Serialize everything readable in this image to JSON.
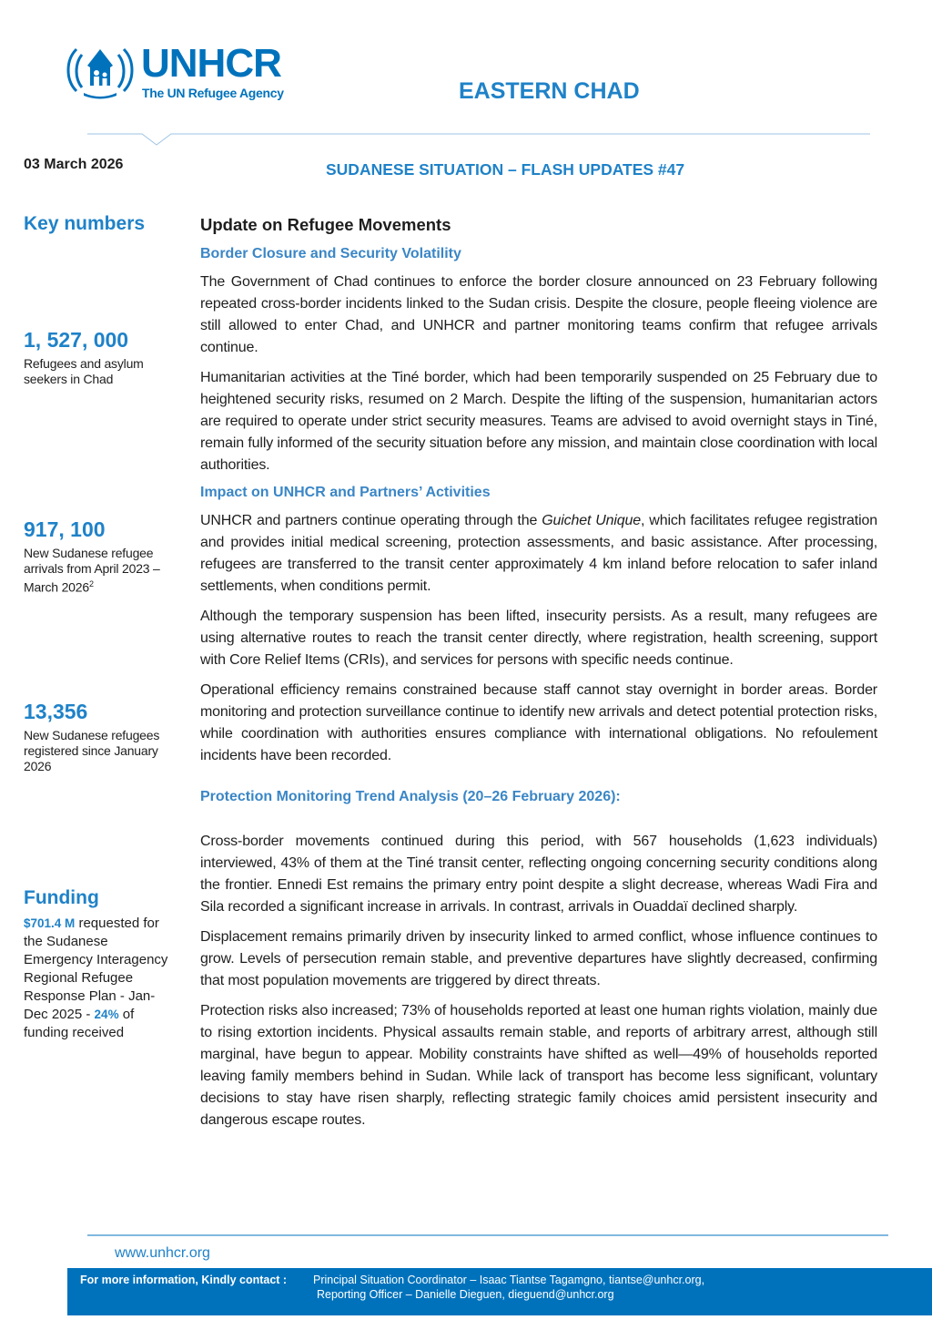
{
  "header": {
    "logo_name": "UNHCR",
    "logo_tagline": "The UN Refugee Agency",
    "region": "EASTERN CHAD",
    "date": "03 March 2026",
    "report_title": "SUDANESE SITUATION – FLASH UPDATES #47"
  },
  "sidebar": {
    "key_numbers_title": "Key numbers",
    "key_numbers": [
      {
        "value": "1, 527, 000",
        "label": "Refugees and asylum seekers in Chad"
      },
      {
        "value": "917, 100",
        "label": "New Sudanese refugee arrivals from April 2023 – March 2026",
        "footnote": "2"
      },
      {
        "value": "13,356",
        "label": "New Sudanese refugees registered since January 2026"
      }
    ],
    "funding_title": "Funding",
    "funding_text": [
      "",
      "$701.4 M",
      " requested for the Sudanese Emergency Interagency Regional Refugee Response Plan - Jan- Dec 2025 - ",
      "24%",
      " of funding received"
    ]
  },
  "main": {
    "title": "Update on Refugee Movements",
    "sections": [
      {
        "heading": "Border Closure and Security Volatility",
        "paragraphs": [
          [
            "The Government of Chad continues to enforce the border closure announced on 23 February following repeated cross-border incidents linked to the Sudan crisis. Despite the closure, people fleeing violence are still allowed to enter Chad, and UNHCR and partner monitoring teams confirm that refugee arrivals continue."
          ],
          [
            "Humanitarian activities at the Tiné border, which had been temporarily suspended on 25 February due to heightened security risks, resumed on 2 March. Despite the lifting of the suspension, humanitarian actors are required to operate under strict security measures. Teams are advised to avoid overnight stays in Tiné, remain fully informed of the security situation before any mission, and maintain close coordination with local authorities."
          ]
        ]
      },
      {
        "heading": "Impact on UNHCR and Partners’ Activities",
        "paragraphs": [
          [
            "UNHCR and partners continue operating through the ",
            "Guichet Unique",
            ", which facilitates refugee registration and provides initial medical screening, protection assessments, and basic assistance. After processing, refugees are transferred to the transit center approximately 4 km inland before relocation to safer inland settlements, when conditions permit."
          ],
          [
            "Although the temporary suspension has been lifted, insecurity persists. As a result, many refugees are using alternative routes to reach the transit center directly, where registration, health screening, support with Core Relief Items (CRIs), and services for persons with specific needs continue."
          ],
          [
            "Operational efficiency remains constrained because staff cannot stay overnight in border areas. Border monitoring and protection surveillance continue to identify new arrivals and detect potential protection risks, while coordination with authorities ensures compliance with international obligations. No refoulement incidents have been recorded."
          ]
        ]
      },
      {
        "heading": "Protection Monitoring Trend Analysis (20–26 February 2026):",
        "paragraphs": [
          [
            "Cross-border movements continued during this period, with 567 households (1,623 individuals) interviewed, 43% of them at the Tiné transit center, reflecting ongoing concerning security conditions along the frontier. Ennedi Est remains the primary entry point despite a slight decrease, whereas Wadi Fira and Sila recorded a significant increase in arrivals. In contrast, arrivals in Ouaddaï declined sharply."
          ],
          [
            "Displacement remains primarily driven by insecurity linked to armed conflict, whose influence continues to grow. Levels of persecution remain stable, and preventive departures have slightly decreased, confirming that most population movements are triggered by direct threats."
          ],
          [
            "Protection risks also increased; 73% of households reported at least one human rights violation, mainly due to rising extortion incidents. Physical assaults remain stable, and reports of arbitrary arrest, although still marginal, have begun to appear. Mobility constraints have shifted as well—49% of households reported leaving family members behind in Sudan. While lack of transport has become less significant, voluntary decisions to stay have risen sharply, reflecting strategic family choices amid persistent insecurity and dangerous escape routes."
          ]
        ]
      }
    ]
  },
  "footer": {
    "website": "www.unhcr.org",
    "contact_label": "For more information, Kindly contact :",
    "contact_lines": [
      "Principal Situation Coordinator – Isaac Tiantse Tagamgno, tiantse@unhcr.org,",
      "Reporting Officer – Danielle Dieguen, dieguend@unhcr.org"
    ]
  }
}
